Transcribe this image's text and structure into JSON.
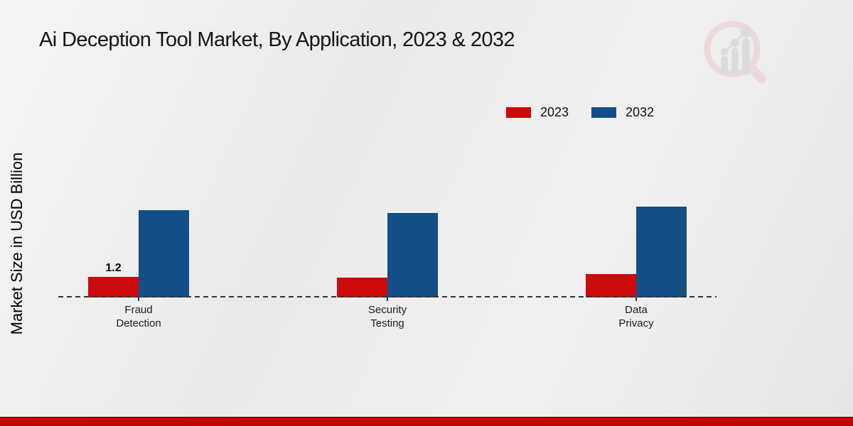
{
  "title": "Ai Deception Tool Market, By Application, 2023 & 2032",
  "y_axis_label": "Market Size in USD Billion",
  "watermark": {
    "name": "market-research-future-logo"
  },
  "footer": {
    "accent_color": "#c10505"
  },
  "chart_data": {
    "type": "bar",
    "title": "Ai Deception Tool Market, By Application, 2023 & 2032",
    "xlabel": "",
    "ylabel": "Market Size in USD Billion",
    "categories": [
      "Fraud\nDetection",
      "Security\nTesting",
      "Data\nPrivacy"
    ],
    "series": [
      {
        "name": "2023",
        "color": "#cb0b0b",
        "values": [
          1.2,
          1.15,
          1.35
        ]
      },
      {
        "name": "2032",
        "color": "#134e87",
        "values": [
          5.1,
          4.9,
          5.3
        ]
      }
    ],
    "annotations": [
      {
        "series_index": 0,
        "category_index": 0,
        "text": "1.2"
      }
    ],
    "ylim": [
      0,
      6
    ],
    "grid": false,
    "baseline_style": "dashed",
    "legend_position": "top-right"
  }
}
